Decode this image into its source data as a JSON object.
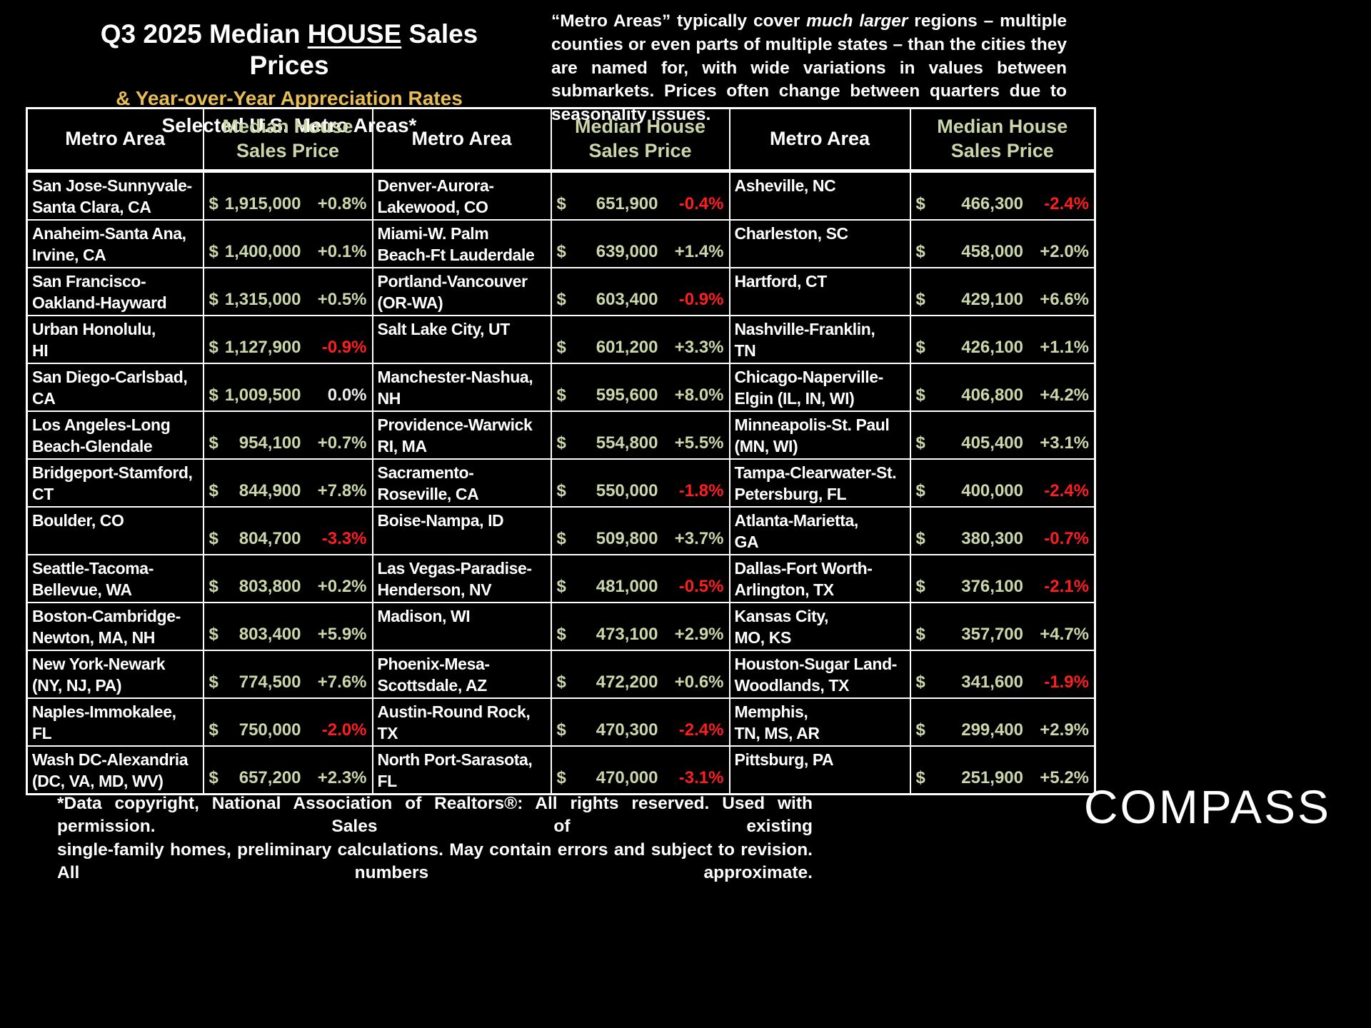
{
  "colors": {
    "background": "#000000",
    "text": "#ffffff",
    "accent_gold": "#e7bd55",
    "price_green": "#cbd7a8",
    "negative_red": "#ff1e1e",
    "neutral_pct": "#ececec",
    "border": "#ffffff"
  },
  "header": {
    "title_segments": [
      {
        "text": "Q3 2025 Median "
      },
      {
        "text": "HOUSE",
        "underline": true
      },
      {
        "text": " Sales Prices"
      }
    ],
    "subtitle": "& Year-over-Year Appreciation Rates",
    "scope": "Selected U.S. Metro Areas*",
    "note_segments": [
      {
        "text": "“Metro Areas” typically cover "
      },
      {
        "text": "much larger",
        "italic": true
      },
      {
        "text": " regions – multiple counties or even parts of multiple states – than the cities they are named for, with wide variations in values between submarkets. Prices often change between quarters due to seasonality issues."
      }
    ]
  },
  "table_headers": {
    "metro": "Metro Area",
    "price_l1": "Median House",
    "price_l2": "Sales Price"
  },
  "chart_data": {
    "type": "table",
    "title": "Q3 2025 Median HOUSE Sales Prices",
    "subtitle": "& Year-over-Year Appreciation Rates",
    "scope": "Selected U.S. Metro Areas*",
    "currency_symbol": "$",
    "columns": [
      "Metro Area",
      "Median House Sales Price",
      "Year-over-Year Appreciation"
    ],
    "groups": [
      {
        "rows": [
          {
            "metro_lines": [
              "San Jose-Sunnyvale-",
              "Santa Clara, CA"
            ],
            "price": "1,915,000",
            "yoy": "+0.8%"
          },
          {
            "metro_lines": [
              "Anaheim-Santa Ana,",
              "Irvine, CA"
            ],
            "price": "1,400,000",
            "yoy": "+0.1%"
          },
          {
            "metro_lines": [
              "San Francisco-",
              "Oakland-Hayward"
            ],
            "price": "1,315,000",
            "yoy": "+0.5%"
          },
          {
            "metro_lines": [
              "Urban Honolulu,",
              "HI"
            ],
            "price": "1,127,900",
            "yoy": "-0.9%"
          },
          {
            "metro_lines": [
              "San Diego-Carlsbad,",
              "CA"
            ],
            "price": "1,009,500",
            "yoy": "0.0%"
          },
          {
            "metro_lines": [
              "Los Angeles-Long",
              "Beach-Glendale"
            ],
            "price": "954,100",
            "yoy": "+0.7%"
          },
          {
            "metro_lines": [
              "Bridgeport-Stamford,",
              "CT"
            ],
            "price": "844,900",
            "yoy": "+7.8%"
          },
          {
            "metro_lines": [
              "Boulder, CO"
            ],
            "price": "804,700",
            "yoy": "-3.3%"
          },
          {
            "metro_lines": [
              "Seattle-Tacoma-",
              "Bellevue, WA"
            ],
            "price": "803,800",
            "yoy": "+0.2%"
          },
          {
            "metro_lines": [
              "Boston-Cambridge-",
              "Newton, MA, NH"
            ],
            "price": "803,400",
            "yoy": "+5.9%"
          },
          {
            "metro_lines": [
              "New York-Newark",
              "(NY, NJ, PA)"
            ],
            "price": "774,500",
            "yoy": "+7.6%"
          },
          {
            "metro_lines": [
              "Naples-Immokalee,",
              "FL"
            ],
            "price": "750,000",
            "yoy": "-2.0%"
          },
          {
            "metro_lines": [
              "Wash DC-Alexandria",
              "(DC, VA, MD, WV)"
            ],
            "price": "657,200",
            "yoy": "+2.3%"
          }
        ]
      },
      {
        "rows": [
          {
            "metro_lines": [
              "Denver-Aurora-",
              "Lakewood, CO"
            ],
            "price": "651,900",
            "yoy": "-0.4%"
          },
          {
            "metro_lines": [
              "Miami-W. Palm",
              "Beach-Ft Lauderdale"
            ],
            "price": "639,000",
            "yoy": "+1.4%"
          },
          {
            "metro_lines": [
              "Portland-Vancouver",
              "(OR-WA)"
            ],
            "price": "603,400",
            "yoy": "-0.9%"
          },
          {
            "metro_lines": [
              "Salt Lake City, UT"
            ],
            "price": "601,200",
            "yoy": "+3.3%"
          },
          {
            "metro_lines": [
              "Manchester-Nashua,",
              "NH"
            ],
            "price": "595,600",
            "yoy": "+8.0%"
          },
          {
            "metro_lines": [
              "Providence-Warwick",
              "RI, MA"
            ],
            "price": "554,800",
            "yoy": "+5.5%"
          },
          {
            "metro_lines": [
              "Sacramento-",
              "Roseville, CA"
            ],
            "price": "550,000",
            "yoy": "-1.8%"
          },
          {
            "metro_lines": [
              "Boise-Nampa, ID"
            ],
            "price": "509,800",
            "yoy": "+3.7%"
          },
          {
            "metro_lines": [
              "Las Vegas-Paradise-",
              "Henderson, NV"
            ],
            "price": "481,000",
            "yoy": "-0.5%"
          },
          {
            "metro_lines": [
              "Madison, WI"
            ],
            "price": "473,100",
            "yoy": "+2.9%"
          },
          {
            "metro_lines": [
              "Phoenix-Mesa-",
              "Scottsdale, AZ"
            ],
            "price": "472,200",
            "yoy": "+0.6%"
          },
          {
            "metro_lines": [
              "Austin-Round Rock,",
              "TX"
            ],
            "price": "470,300",
            "yoy": "-2.4%"
          },
          {
            "metro_lines": [
              "North Port-Sarasota,",
              "FL"
            ],
            "price": "470,000",
            "yoy": "-3.1%"
          }
        ]
      },
      {
        "rows": [
          {
            "metro_lines": [
              "Asheville, NC"
            ],
            "price": "466,300",
            "yoy": "-2.4%"
          },
          {
            "metro_lines": [
              "Charleston, SC"
            ],
            "price": "458,000",
            "yoy": "+2.0%"
          },
          {
            "metro_lines": [
              "Hartford, CT"
            ],
            "price": "429,100",
            "yoy": "+6.6%"
          },
          {
            "metro_lines": [
              "Nashville-Franklin,",
              "TN"
            ],
            "price": "426,100",
            "yoy": "+1.1%"
          },
          {
            "metro_lines": [
              "Chicago-Naperville-",
              "Elgin (IL, IN, WI)"
            ],
            "price": "406,800",
            "yoy": "+4.2%"
          },
          {
            "metro_lines": [
              "Minneapolis-St. Paul",
              "(MN, WI)"
            ],
            "price": "405,400",
            "yoy": "+3.1%"
          },
          {
            "metro_lines": [
              "Tampa-Clearwater-St.",
              "Petersburg, FL"
            ],
            "price": "400,000",
            "yoy": "-2.4%"
          },
          {
            "metro_lines": [
              "Atlanta-Marietta,",
              "GA"
            ],
            "price": "380,300",
            "yoy": "-0.7%"
          },
          {
            "metro_lines": [
              "Dallas-Fort Worth-",
              "Arlington, TX"
            ],
            "price": "376,100",
            "yoy": "-2.1%"
          },
          {
            "metro_lines": [
              "Kansas City,",
              "MO, KS"
            ],
            "price": "357,700",
            "yoy": "+4.7%"
          },
          {
            "metro_lines": [
              "Houston-Sugar Land-",
              "Woodlands, TX"
            ],
            "price": "341,600",
            "yoy": "-1.9%"
          },
          {
            "metro_lines": [
              "Memphis,",
              "TN, MS, AR"
            ],
            "price": "299,400",
            "yoy": "+2.9%"
          },
          {
            "metro_lines": [
              "Pittsburg, PA"
            ],
            "price": "251,900",
            "yoy": "+5.2%"
          }
        ]
      }
    ]
  },
  "footer": {
    "line1": "*Data copyright, National Association of Realtors®: All rights reserved. Used with permission. Sales of existing",
    "line2": "single-family homes, preliminary calculations. May contain errors and subject to revision. All numbers approximate."
  },
  "logo": {
    "text": "COMPASS"
  }
}
